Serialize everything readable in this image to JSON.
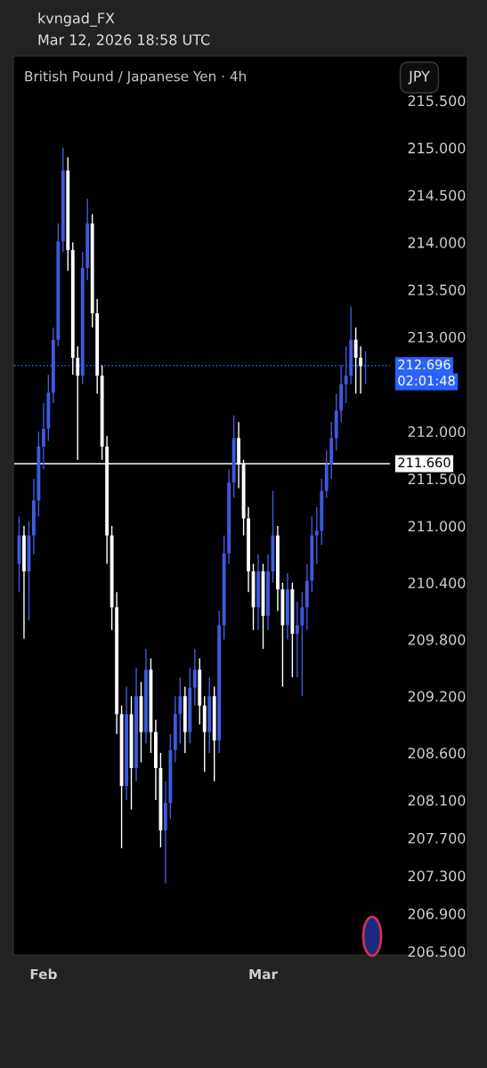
{
  "chart_data": {
    "type": "candlestick",
    "title": "British Pound / Japanese Yen · 4h",
    "annotations": [
      "kvngad_FX",
      "Mar 12, 2026 18:58 UTC",
      "JPY",
      "02:01:48"
    ],
    "categories": [
      null,
      null,
      null,
      null,
      null,
      "Feb",
      null,
      null,
      null,
      null,
      null,
      null,
      null,
      null,
      null,
      null,
      null,
      null,
      null,
      null,
      null,
      null,
      null,
      null,
      null,
      null,
      null,
      null,
      null,
      null,
      null,
      null,
      null,
      null,
      null,
      null,
      null,
      null,
      null,
      null,
      null,
      null,
      null,
      null,
      null,
      null,
      null,
      null,
      null,
      null,
      "Mar",
      null,
      null,
      null,
      null,
      null,
      null,
      null,
      null,
      null,
      null,
      null,
      null,
      null,
      null,
      null,
      null,
      null,
      null,
      null,
      null,
      null
    ],
    "ohlc": [
      [
        210.6,
        211.1,
        210.3,
        210.9
      ],
      [
        210.9,
        211.0,
        209.81,
        210.52
      ],
      [
        210.52,
        211.05,
        210.0,
        210.9
      ],
      [
        210.9,
        211.5,
        210.7,
        211.27
      ],
      [
        211.27,
        212.0,
        211.1,
        211.84
      ],
      [
        211.84,
        212.3,
        211.6,
        212.03
      ],
      [
        212.03,
        212.6,
        211.9,
        212.41
      ],
      [
        212.41,
        213.1,
        212.3,
        212.97
      ],
      [
        212.97,
        214.2,
        212.9,
        214.01
      ],
      [
        214.01,
        215.0,
        213.9,
        214.76
      ],
      [
        214.76,
        214.9,
        213.7,
        213.92
      ],
      [
        213.92,
        214.0,
        212.6,
        212.78
      ],
      [
        212.78,
        212.9,
        211.7,
        212.59
      ],
      [
        212.59,
        213.9,
        212.5,
        213.73
      ],
      [
        213.73,
        214.46,
        213.6,
        214.2
      ],
      [
        214.2,
        214.3,
        213.1,
        213.25
      ],
      [
        213.25,
        213.4,
        212.4,
        212.59
      ],
      [
        212.59,
        212.7,
        211.7,
        211.84
      ],
      [
        211.84,
        211.95,
        210.6,
        210.9
      ],
      [
        210.9,
        211.0,
        209.9,
        210.14
      ],
      [
        210.14,
        210.3,
        208.8,
        209.01
      ],
      [
        209.01,
        209.1,
        207.59,
        208.25
      ],
      [
        208.25,
        209.3,
        208.1,
        209.01
      ],
      [
        209.01,
        209.2,
        208.0,
        208.44
      ],
      [
        208.44,
        209.5,
        208.3,
        209.2
      ],
      [
        209.2,
        209.35,
        208.5,
        208.82
      ],
      [
        208.82,
        209.7,
        208.7,
        209.48
      ],
      [
        209.48,
        209.6,
        208.6,
        208.82
      ],
      [
        208.82,
        208.95,
        208.1,
        208.44
      ],
      [
        208.44,
        208.6,
        207.6,
        207.78
      ],
      [
        207.78,
        208.3,
        207.22,
        208.07
      ],
      [
        208.07,
        208.8,
        207.9,
        208.63
      ],
      [
        208.63,
        209.2,
        208.5,
        209.01
      ],
      [
        209.01,
        209.4,
        208.7,
        209.2
      ],
      [
        209.2,
        209.3,
        208.6,
        208.82
      ],
      [
        208.82,
        209.5,
        208.7,
        209.29
      ],
      [
        209.29,
        209.7,
        209.1,
        209.48
      ],
      [
        209.48,
        209.6,
        208.9,
        209.1
      ],
      [
        209.1,
        209.2,
        208.4,
        208.82
      ],
      [
        208.82,
        209.4,
        208.6,
        209.2
      ],
      [
        209.2,
        209.3,
        208.3,
        208.73
      ],
      [
        208.73,
        210.1,
        208.6,
        209.95
      ],
      [
        209.95,
        210.9,
        209.8,
        210.71
      ],
      [
        210.71,
        211.6,
        210.6,
        211.46
      ],
      [
        211.46,
        212.17,
        211.3,
        211.93
      ],
      [
        211.93,
        212.1,
        211.4,
        211.65
      ],
      [
        211.65,
        211.7,
        210.9,
        211.08
      ],
      [
        211.08,
        211.2,
        210.3,
        210.52
      ],
      [
        210.52,
        210.6,
        209.9,
        210.14
      ],
      [
        210.14,
        210.7,
        209.9,
        210.52
      ],
      [
        210.52,
        210.6,
        209.7,
        210.05
      ],
      [
        210.05,
        210.7,
        209.9,
        210.52
      ],
      [
        210.52,
        211.37,
        210.4,
        210.9
      ],
      [
        210.9,
        211.0,
        210.1,
        210.33
      ],
      [
        210.33,
        210.4,
        209.3,
        209.95
      ],
      [
        209.95,
        210.5,
        209.8,
        210.33
      ],
      [
        210.33,
        210.4,
        209.4,
        209.86
      ],
      [
        209.86,
        210.2,
        209.4,
        209.95
      ],
      [
        209.95,
        210.3,
        209.2,
        210.14
      ],
      [
        210.14,
        210.6,
        209.9,
        210.42
      ],
      [
        210.42,
        211.1,
        210.3,
        210.9
      ],
      [
        210.9,
        211.2,
        210.6,
        210.95
      ],
      [
        210.95,
        211.5,
        210.8,
        211.37
      ],
      [
        211.37,
        211.8,
        211.3,
        211.65
      ],
      [
        211.65,
        212.1,
        211.5,
        211.93
      ],
      [
        211.93,
        212.4,
        211.8,
        212.22
      ],
      [
        212.22,
        212.7,
        212.1,
        212.5
      ],
      [
        212.5,
        212.9,
        212.3,
        212.59
      ],
      [
        212.59,
        213.32,
        212.5,
        212.97
      ],
      [
        212.97,
        213.1,
        212.4,
        212.78
      ],
      [
        212.78,
        212.9,
        212.4,
        212.69
      ],
      [
        212.69,
        212.85,
        212.5,
        212.696
      ]
    ],
    "colors": [
      "#3d5be0",
      "#ffffff",
      "#3d5be0",
      "#3d5be0",
      "#3d5be0",
      "#3d5be0",
      "#3d5be0",
      "#3d5be0",
      "#3d5be0",
      "#3d5be0",
      "#ffffff",
      "#ffffff",
      "#ffffff",
      "#3d5be0",
      "#3d5be0",
      "#ffffff",
      "#ffffff",
      "#ffffff",
      "#ffffff",
      "#ffffff",
      "#ffffff",
      "#ffffff",
      "#3d5be0",
      "#ffffff",
      "#3d5be0",
      "#ffffff",
      "#3d5be0",
      "#ffffff",
      "#ffffff",
      "#ffffff",
      "#3d5be0",
      "#3d5be0",
      "#3d5be0",
      "#3d5be0",
      "#ffffff",
      "#3d5be0",
      "#3d5be0",
      "#ffffff",
      "#ffffff",
      "#3d5be0",
      "#ffffff",
      "#3d5be0",
      "#3d5be0",
      "#3d5be0",
      "#3d5be0",
      "#ffffff",
      "#ffffff",
      "#ffffff",
      "#ffffff",
      "#3d5be0",
      "#ffffff",
      "#3d5be0",
      "#3d5be0",
      "#ffffff",
      "#ffffff",
      "#3d5be0",
      "#ffffff",
      "#3d5be0",
      "#3d5be0",
      "#3d5be0",
      "#3d5be0",
      "#3d5be0",
      "#3d5be0",
      "#3d5be0",
      "#3d5be0",
      "#3d5be0",
      "#3d5be0",
      "#3d5be0",
      "#3d5be0",
      "#ffffff",
      "#ffffff",
      "#3d5be0"
    ],
    "ylim": [
      206.5,
      215.5
    ],
    "yticks": [
      {
        "value": 215.5,
        "label": "215.500"
      },
      {
        "value": 215.0,
        "label": "215.000"
      },
      {
        "value": 214.5,
        "label": "214.500"
      },
      {
        "value": 214.0,
        "label": "214.000"
      },
      {
        "value": 213.5,
        "label": "213.500"
      },
      {
        "value": 213.0,
        "label": "213.000"
      },
      {
        "value": 212.0,
        "label": "212.000"
      },
      {
        "value": 211.5,
        "label": "211.500"
      },
      {
        "value": 211.0,
        "label": "211.000"
      },
      {
        "value": 210.4,
        "label": "210.400"
      },
      {
        "value": 209.8,
        "label": "209.800"
      },
      {
        "value": 209.2,
        "label": "209.200"
      },
      {
        "value": 208.6,
        "label": "208.600"
      },
      {
        "value": 208.1,
        "label": "208.100"
      },
      {
        "value": 207.7,
        "label": "207.700"
      },
      {
        "value": 207.3,
        "label": "207.300"
      },
      {
        "value": 206.9,
        "label": "206.900"
      },
      {
        "value": 206.5,
        "label": "206.500"
      }
    ],
    "ref_lines": [
      {
        "axis": "y",
        "value": 211.66,
        "label": "211.660",
        "color": "#ffffff",
        "line_style": "solid"
      },
      {
        "axis": "y",
        "value": 212.696,
        "label": "212.696",
        "color": "#2962ff",
        "line_style": "dotted"
      }
    ],
    "grid": false
  }
}
